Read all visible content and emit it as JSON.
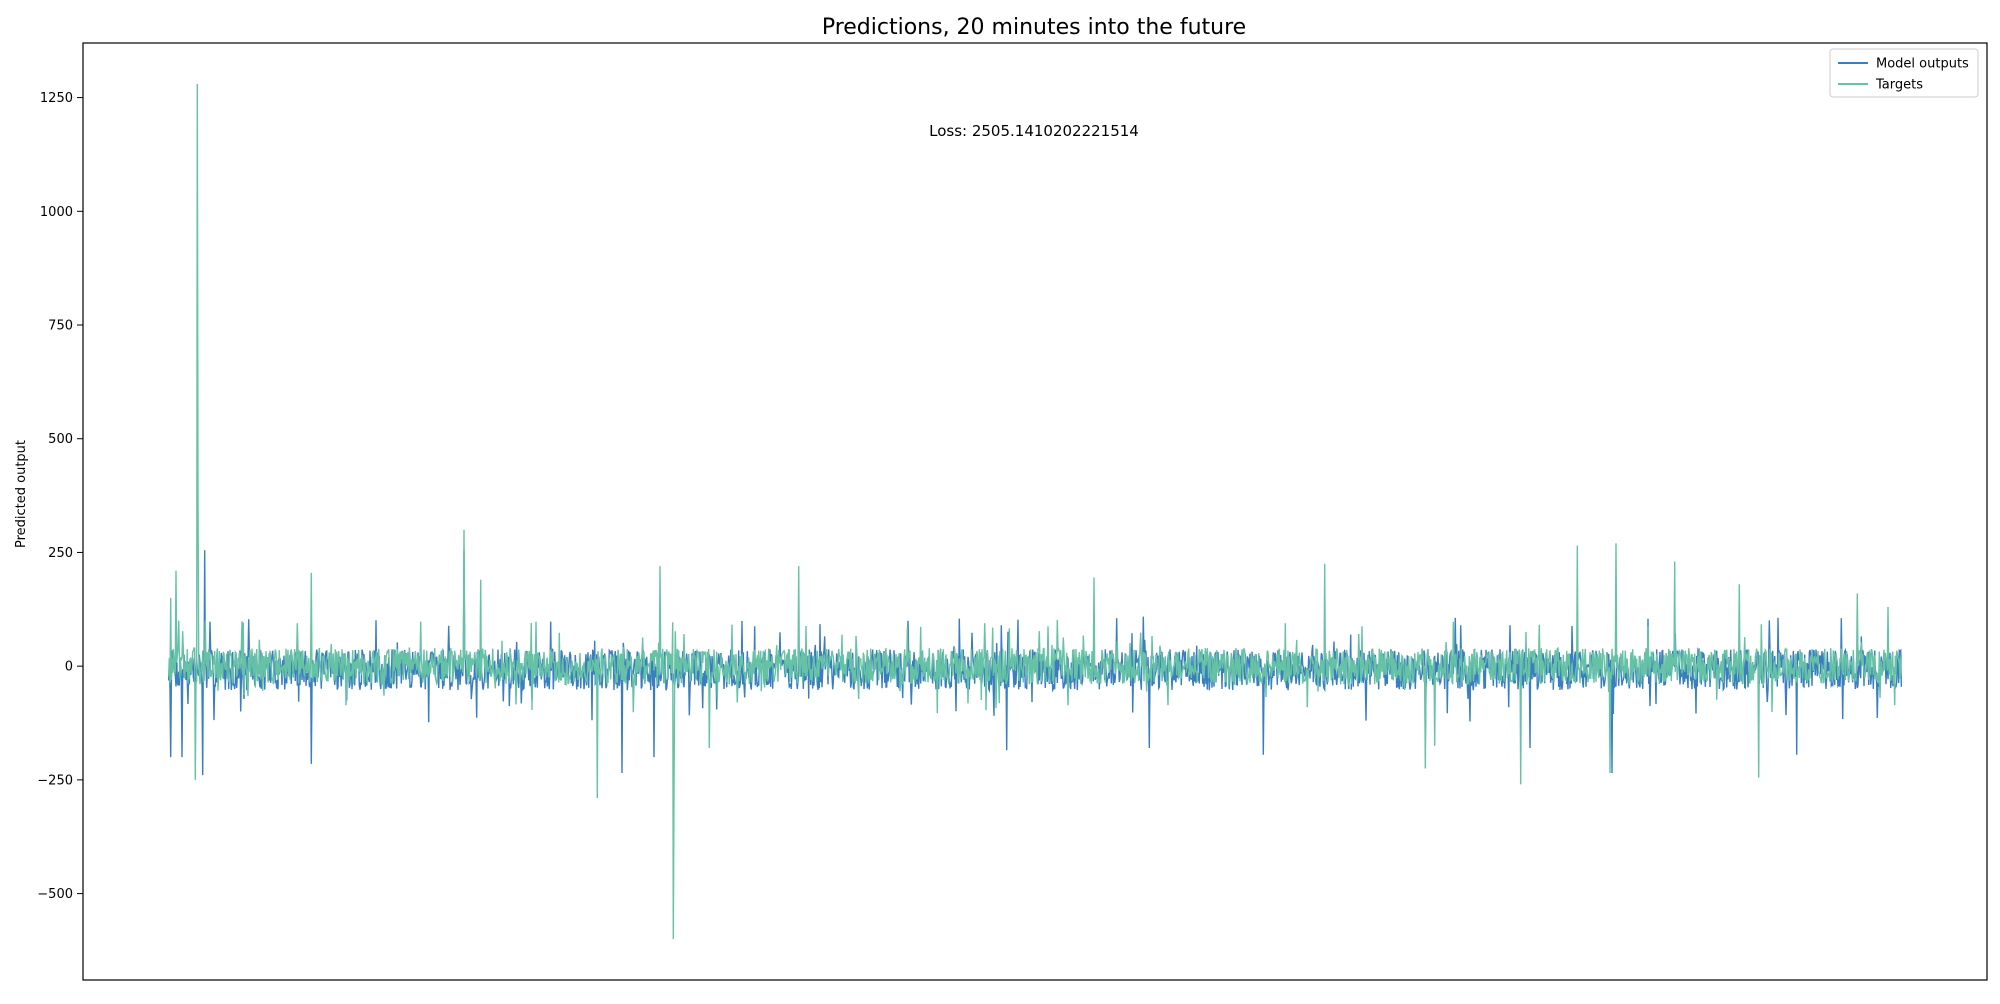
{
  "chart_data": {
    "type": "line",
    "title": "Predictions, 20 minutes into the future",
    "annotation": "Loss: 2505.1410202221514",
    "xlabel": "",
    "ylabel": "Predicted output",
    "ylim": [
      -690,
      1370
    ],
    "xlim": [
      0,
      1000
    ],
    "yticks": [
      -500,
      -250,
      0,
      250,
      500,
      750,
      1000,
      1250
    ],
    "ytick_labels": [
      "−500",
      "−250",
      "0",
      "250",
      "500",
      "750",
      "1000",
      "1250"
    ],
    "xticks_visible": false,
    "grid": false,
    "legend_position": "upper right",
    "x_range": [
      45,
      955
    ],
    "series": [
      {
        "name": "Model outputs",
        "color": "#3a7ebf",
        "values_note_none": null,
        "spikes": [
          {
            "x": 64,
            "y": 255
          },
          {
            "x": 63,
            "y": -240
          },
          {
            "x": 46,
            "y": -200
          },
          {
            "x": 52,
            "y": -200
          },
          {
            "x": 120,
            "y": -215
          },
          {
            "x": 200,
            "y": 255
          },
          {
            "x": 283,
            "y": -235
          },
          {
            "x": 300,
            "y": -200
          },
          {
            "x": 485,
            "y": -185
          },
          {
            "x": 560,
            "y": -180
          },
          {
            "x": 620,
            "y": -195
          },
          {
            "x": 705,
            "y": -180
          },
          {
            "x": 760,
            "y": -180
          },
          {
            "x": 803,
            "y": -235
          },
          {
            "x": 900,
            "y": -195
          }
        ],
        "amplitude": 45,
        "seed": 7
      },
      {
        "name": "Targets",
        "color": "#66c2a5",
        "spikes": [
          {
            "x": 60,
            "y": 1280
          },
          {
            "x": 60.5,
            "y": 360
          },
          {
            "x": 59,
            "y": -250
          },
          {
            "x": 46,
            "y": 150
          },
          {
            "x": 49,
            "y": 210
          },
          {
            "x": 120,
            "y": 205
          },
          {
            "x": 200,
            "y": 300
          },
          {
            "x": 209,
            "y": 190
          },
          {
            "x": 270,
            "y": -290
          },
          {
            "x": 303,
            "y": 220
          },
          {
            "x": 310,
            "y": -600
          },
          {
            "x": 310.5,
            "y": -275
          },
          {
            "x": 329,
            "y": -180
          },
          {
            "x": 376,
            "y": 220
          },
          {
            "x": 531,
            "y": 195
          },
          {
            "x": 652,
            "y": 225
          },
          {
            "x": 705,
            "y": -225
          },
          {
            "x": 710,
            "y": -175
          },
          {
            "x": 755,
            "y": -260
          },
          {
            "x": 785,
            "y": 265
          },
          {
            "x": 802,
            "y": -235
          },
          {
            "x": 805,
            "y": 270
          },
          {
            "x": 836,
            "y": 230
          },
          {
            "x": 870,
            "y": 180
          },
          {
            "x": 880,
            "y": -245
          },
          {
            "x": 932,
            "y": 160
          },
          {
            "x": 948,
            "y": 130
          }
        ],
        "amplitude": 40,
        "seed": 13
      }
    ]
  }
}
